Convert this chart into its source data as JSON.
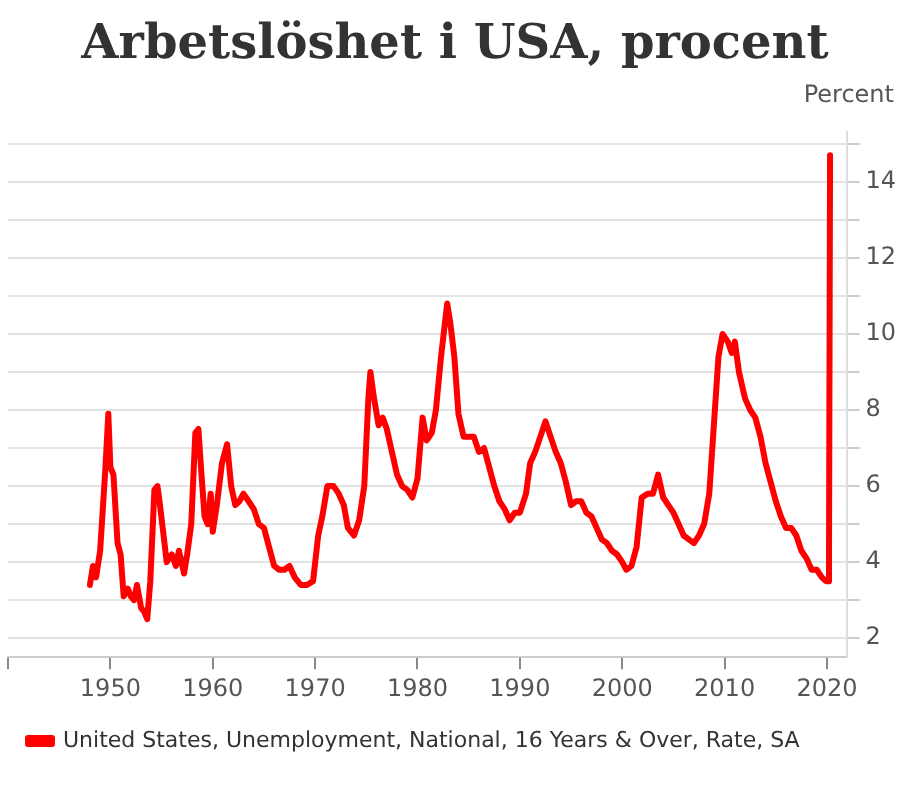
{
  "chart_data": {
    "type": "line",
    "title": "Arbetslöshet i USA, procent",
    "ylabel": "Percent",
    "x": [
      1948.0,
      1948.3,
      1948.6,
      1949.0,
      1949.5,
      1949.8,
      1950.0,
      1950.3,
      1950.7,
      1951.0,
      1951.3,
      1951.7,
      1952.0,
      1952.3,
      1952.6,
      1953.0,
      1953.3,
      1953.6,
      1953.9,
      1954.3,
      1954.6,
      1954.8,
      1955.2,
      1955.5,
      1956.0,
      1956.4,
      1956.7,
      1957.2,
      1957.5,
      1957.9,
      1958.3,
      1958.6,
      1958.9,
      1959.2,
      1959.5,
      1959.8,
      1960.0,
      1960.4,
      1960.9,
      1961.4,
      1961.8,
      1962.2,
      1962.6,
      1963.0,
      1963.5,
      1964.0,
      1964.5,
      1965.0,
      1965.5,
      1966.0,
      1966.5,
      1967.0,
      1967.5,
      1968.0,
      1968.6,
      1969.2,
      1969.8,
      1970.3,
      1970.7,
      1971.2,
      1971.8,
      1972.3,
      1972.8,
      1973.2,
      1973.8,
      1974.3,
      1974.8,
      1975.2,
      1975.4,
      1975.7,
      1976.2,
      1976.6,
      1977.0,
      1977.5,
      1978.0,
      1978.5,
      1979.0,
      1979.5,
      1980.0,
      1980.5,
      1980.9,
      1981.4,
      1981.8,
      1982.3,
      1982.9,
      1983.2,
      1983.6,
      1984.0,
      1984.5,
      1985.0,
      1985.5,
      1986.0,
      1986.5,
      1987.0,
      1987.5,
      1988.0,
      1988.5,
      1989.0,
      1989.5,
      1990.0,
      1990.6,
      1991.0,
      1991.5,
      1992.0,
      1992.5,
      1993.0,
      1993.5,
      1994.0,
      1994.5,
      1995.0,
      1995.5,
      1996.0,
      1996.5,
      1997.0,
      1997.5,
      1998.0,
      1998.5,
      1999.0,
      1999.5,
      2000.0,
      2000.4,
      2000.9,
      2001.4,
      2001.9,
      2002.5,
      2003.0,
      2003.5,
      2004.0,
      2004.5,
      2005.0,
      2005.5,
      2006.0,
      2006.5,
      2007.0,
      2007.5,
      2008.0,
      2008.5,
      2009.0,
      2009.4,
      2009.8,
      2010.3,
      2010.7,
      2011.0,
      2011.4,
      2012.0,
      2012.5,
      2013.0,
      2013.5,
      2014.0,
      2014.5,
      2015.0,
      2015.5,
      2016.0,
      2016.5,
      2017.0,
      2017.5,
      2018.0,
      2018.5,
      2019.0,
      2019.5,
      2019.9,
      2020.1,
      2020.2,
      2020.3
    ],
    "series": [
      {
        "name": "United States, Unemployment, National, 16 Years & Over, Rate, SA",
        "color": "#ff0000",
        "values": [
          3.4,
          3.9,
          3.6,
          4.3,
          6.4,
          7.9,
          6.5,
          6.3,
          4.5,
          4.2,
          3.1,
          3.3,
          3.1,
          3.0,
          3.4,
          2.8,
          2.7,
          2.5,
          3.5,
          5.9,
          6.0,
          5.6,
          4.7,
          4.0,
          4.2,
          3.9,
          4.3,
          3.7,
          4.2,
          5.0,
          7.4,
          7.5,
          6.3,
          5.2,
          5.0,
          5.8,
          4.8,
          5.5,
          6.6,
          7.1,
          6.0,
          5.5,
          5.6,
          5.8,
          5.6,
          5.4,
          5.0,
          4.9,
          4.4,
          3.9,
          3.8,
          3.8,
          3.9,
          3.6,
          3.4,
          3.4,
          3.5,
          4.7,
          5.2,
          6.0,
          6.0,
          5.8,
          5.5,
          4.9,
          4.7,
          5.1,
          6.0,
          8.3,
          9.0,
          8.4,
          7.6,
          7.8,
          7.5,
          6.9,
          6.3,
          6.0,
          5.9,
          5.7,
          6.2,
          7.8,
          7.2,
          7.4,
          8.0,
          9.4,
          10.8,
          10.3,
          9.4,
          7.9,
          7.3,
          7.3,
          7.3,
          6.9,
          7.0,
          6.5,
          6.0,
          5.6,
          5.4,
          5.1,
          5.3,
          5.3,
          5.8,
          6.6,
          6.9,
          7.3,
          7.7,
          7.3,
          6.9,
          6.6,
          6.1,
          5.5,
          5.6,
          5.6,
          5.3,
          5.2,
          4.9,
          4.6,
          4.5,
          4.3,
          4.2,
          4.0,
          3.8,
          3.9,
          4.4,
          5.7,
          5.8,
          5.8,
          6.3,
          5.7,
          5.5,
          5.3,
          5.0,
          4.7,
          4.6,
          4.5,
          4.7,
          5.0,
          5.8,
          7.8,
          9.4,
          10.0,
          9.8,
          9.5,
          9.8,
          9.0,
          8.3,
          8.0,
          7.8,
          7.3,
          6.6,
          6.1,
          5.6,
          5.2,
          4.9,
          4.9,
          4.7,
          4.3,
          4.1,
          3.8,
          3.8,
          3.6,
          3.5,
          3.5,
          4.4,
          14.7
        ]
      }
    ],
    "xlim": [
      1940,
      2022
    ],
    "xticks": [
      {
        "value": 1940,
        "label": null
      },
      1950,
      1960,
      1970,
      1980,
      1990,
      2000,
      2010,
      2020
    ],
    "ylim": [
      1.5,
      15.3
    ],
    "yticks": [
      2,
      {
        "value": 3,
        "label": null
      },
      4,
      {
        "value": 5,
        "label": null
      },
      6,
      {
        "value": 7,
        "label": null
      },
      8,
      {
        "value": 9,
        "label": null
      },
      10,
      {
        "value": 11,
        "label": null
      },
      12,
      {
        "value": 13,
        "label": null
      },
      14,
      {
        "value": 15,
        "label": null
      }
    ],
    "grid": "y",
    "legend": "bottom",
    "marker": "none",
    "line_style": "solid"
  }
}
